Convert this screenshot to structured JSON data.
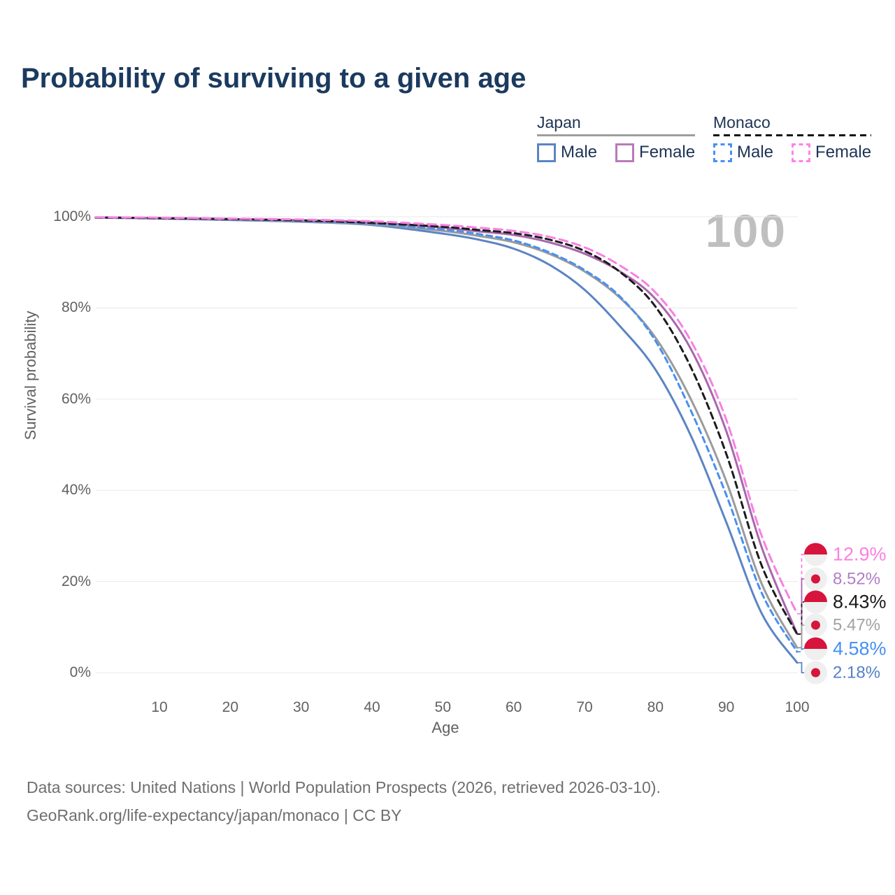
{
  "title": "Probability of surviving to a given age",
  "legend": {
    "groups": [
      {
        "title": "Japan",
        "underline_style": "solid",
        "underline_color": "#9e9e9e",
        "items": [
          {
            "label": "Male",
            "color": "#5b84c4",
            "dashed": false
          },
          {
            "label": "Female",
            "color": "#b97ab8",
            "dashed": false
          }
        ]
      },
      {
        "title": "Monaco",
        "underline_style": "dashed",
        "underline_color": "#141414",
        "items": [
          {
            "label": "Male",
            "color": "#4790f2",
            "dashed": true
          },
          {
            "label": "Female",
            "color": "#ff82e8",
            "dashed": true
          }
        ]
      }
    ]
  },
  "axes": {
    "y_axis_title": "Survival probability",
    "x_axis_title": "Age",
    "y_ticks": [
      {
        "value": 100,
        "label": "100%"
      },
      {
        "value": 80,
        "label": "80%"
      },
      {
        "value": 60,
        "label": "60%"
      },
      {
        "value": 40,
        "label": "40%"
      },
      {
        "value": 20,
        "label": "20%"
      },
      {
        "value": 0,
        "label": "0%"
      }
    ],
    "x_ticks": [
      {
        "value": 10,
        "label": "10"
      },
      {
        "value": 20,
        "label": "20"
      },
      {
        "value": 30,
        "label": "30"
      },
      {
        "value": 40,
        "label": "40"
      },
      {
        "value": 50,
        "label": "50"
      },
      {
        "value": 60,
        "label": "60"
      },
      {
        "value": 70,
        "label": "70"
      },
      {
        "value": 80,
        "label": "80"
      },
      {
        "value": 90,
        "label": "90"
      },
      {
        "value": 100,
        "label": "100"
      }
    ]
  },
  "hover_age_watermark": "100",
  "chart_data": {
    "type": "line",
    "title": "Probability of surviving to a given age",
    "xlabel": "Age",
    "ylabel": "Survival probability",
    "xlim": [
      0,
      100
    ],
    "ylim": [
      0,
      100
    ],
    "grid": "horizontal",
    "legend_position": "top-right",
    "x": [
      1,
      10,
      20,
      30,
      40,
      50,
      55,
      60,
      65,
      70,
      75,
      80,
      85,
      90,
      95,
      100
    ],
    "series": [
      {
        "name": "Japan Male",
        "country": "japan",
        "sex": "male",
        "style": "solid",
        "color": "#5b84c4",
        "label_color": "#5580c7",
        "end_label": "2.18%",
        "values": [
          99.8,
          99.6,
          99.3,
          98.9,
          98.2,
          96.3,
          95.0,
          93.0,
          89.5,
          84.0,
          76.0,
          66.5,
          52.0,
          33.0,
          13.0,
          2.18
        ]
      },
      {
        "name": "Japan Total",
        "country": "japan",
        "sex": "both",
        "style": "solid",
        "color": "#9b9b9b",
        "label_color": "#a2a2a2",
        "end_label": "5.47%",
        "values": [
          99.8,
          99.65,
          99.4,
          99.0,
          98.35,
          96.9,
          95.8,
          94.4,
          91.9,
          88.0,
          82.2,
          73.5,
          60.0,
          42.0,
          19.5,
          5.47
        ]
      },
      {
        "name": "Monaco Male",
        "country": "monaco",
        "sex": "male",
        "style": "dashed",
        "color": "#4790f2",
        "label_color": "#4790f2",
        "end_label": "4.58%",
        "values": [
          99.85,
          99.7,
          99.45,
          99.1,
          98.5,
          97.2,
          96.2,
          94.8,
          92.2,
          88.3,
          82.5,
          72.8,
          57.5,
          39.0,
          17.5,
          4.58
        ]
      },
      {
        "name": "Japan Female",
        "country": "japan",
        "sex": "female",
        "style": "solid",
        "color": "#a768ab",
        "label_color": "#b07ec6",
        "end_label": "8.52%",
        "values": [
          99.85,
          99.7,
          99.5,
          99.25,
          98.8,
          97.6,
          96.8,
          96.0,
          94.4,
          91.9,
          88.0,
          82.0,
          71.0,
          53.0,
          27.5,
          8.52
        ]
      },
      {
        "name": "Monaco Total",
        "country": "monaco",
        "sex": "both",
        "style": "dashed",
        "color": "#1c1c1c",
        "label_color": "#1a1a1a",
        "end_label": "8.43%",
        "values": [
          99.85,
          99.7,
          99.5,
          99.2,
          98.65,
          97.8,
          97.1,
          96.4,
          95.0,
          92.5,
          87.9,
          80.3,
          67.0,
          48.0,
          23.5,
          8.43
        ]
      },
      {
        "name": "Monaco Female",
        "country": "monaco",
        "sex": "female",
        "style": "dashed",
        "color": "#f980e2",
        "label_color": "#fb80e2",
        "end_label": "12.9%",
        "values": [
          99.9,
          99.8,
          99.6,
          99.4,
          99.0,
          98.2,
          97.6,
          96.9,
          95.6,
          93.3,
          89.3,
          83.4,
          72.8,
          55.5,
          30.0,
          12.9
        ]
      }
    ],
    "callouts": [
      {
        "series_index": 5,
        "label": "12.9%"
      },
      {
        "series_index": 3,
        "label": "8.52%"
      },
      {
        "series_index": 4,
        "label": "8.43%"
      },
      {
        "series_index": 1,
        "label": "5.47%"
      },
      {
        "series_index": 2,
        "label": "4.58%"
      },
      {
        "series_index": 0,
        "label": "2.18%"
      }
    ]
  },
  "footer": {
    "line1": "Data sources: United Nations | World Population Prospects (2026, retrieved 2026-03-10).",
    "line2": "GeoRank.org/life-expectancy/japan/monaco | CC BY"
  },
  "colors": {
    "title_text": "#1b3a5f",
    "legend_text": "#1d3455",
    "grid": "#e8e8e8",
    "tick_text": "#616161",
    "watermark": "#bfbfbf",
    "footer_text": "#6f6f6f",
    "flag_red": "#d6143c",
    "flag_white": "#efefef"
  }
}
